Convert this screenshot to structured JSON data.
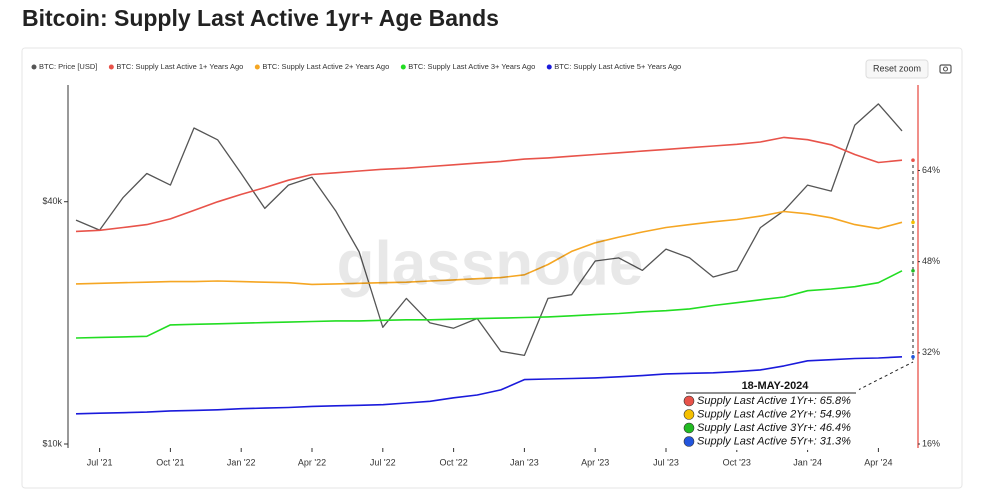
{
  "page_title": "Bitcoin: Supply Last Active 1yr+ Age Bands",
  "reset_button": "Reset zoom",
  "chart_data": {
    "type": "line",
    "watermark": "glassnode",
    "x": [
      "2021-06",
      "2021-07",
      "2021-08",
      "2021-09",
      "2021-10",
      "2021-11",
      "2021-12",
      "2022-01",
      "2022-02",
      "2022-03",
      "2022-04",
      "2022-05",
      "2022-06",
      "2022-07",
      "2022-08",
      "2022-09",
      "2022-10",
      "2022-11",
      "2022-12",
      "2023-01",
      "2023-02",
      "2023-03",
      "2023-04",
      "2023-05",
      "2023-06",
      "2023-07",
      "2023-08",
      "2023-09",
      "2023-10",
      "2023-11",
      "2023-12",
      "2024-01",
      "2024-02",
      "2024-03",
      "2024-04",
      "2024-05"
    ],
    "xlim": [
      "2021-06",
      "2024-05"
    ],
    "xticks": [
      {
        "value": "2021-07",
        "label": "Jul '21"
      },
      {
        "value": "2021-10",
        "label": "Oct '21"
      },
      {
        "value": "2022-01",
        "label": "Jan '22"
      },
      {
        "value": "2022-04",
        "label": "Apr '22"
      },
      {
        "value": "2022-07",
        "label": "Jul '22"
      },
      {
        "value": "2022-10",
        "label": "Oct '22"
      },
      {
        "value": "2023-01",
        "label": "Jan '23"
      },
      {
        "value": "2023-04",
        "label": "Apr '23"
      },
      {
        "value": "2023-07",
        "label": "Jul '23"
      },
      {
        "value": "2023-10",
        "label": "Oct '23"
      },
      {
        "value": "2024-01",
        "label": "Jan '24"
      },
      {
        "value": "2024-04",
        "label": "Apr '24"
      }
    ],
    "ylim": [
      10000,
      78000
    ],
    "yscale": "log",
    "yticks": [
      {
        "value": 10000,
        "label": "$10k"
      },
      {
        "value": 40000,
        "label": "$40k"
      }
    ],
    "y2lim": [
      16,
      79
    ],
    "y2ticks": [
      {
        "value": 16,
        "label": "16%"
      },
      {
        "value": 32,
        "label": "32%"
      },
      {
        "value": 48,
        "label": "48%"
      },
      {
        "value": 64,
        "label": "64%"
      }
    ],
    "grid": false,
    "legend": "top",
    "series": [
      {
        "name": "BTC: Price [USD]",
        "color": "#555555",
        "axis": "y",
        "values": [
          36000,
          34000,
          41000,
          47000,
          44000,
          61000,
          57000,
          47000,
          38500,
          44000,
          46000,
          38000,
          30000,
          19500,
          23000,
          20000,
          19400,
          20500,
          17000,
          16600,
          23000,
          23500,
          28500,
          29000,
          27000,
          30500,
          29000,
          26000,
          27000,
          34500,
          38000,
          44000,
          42500,
          62000,
          70000,
          60000
        ]
      },
      {
        "name": "BTC: Supply Last Active 1+ Years Ago",
        "color": "#e8534a",
        "axis": "y2",
        "values": [
          53.3,
          53.5,
          54,
          54.5,
          55.5,
          57,
          58.5,
          59.8,
          61,
          62.3,
          63.3,
          63.6,
          63.9,
          64.2,
          64.4,
          64.7,
          65,
          65.3,
          65.6,
          66,
          66.2,
          66.5,
          66.8,
          67.1,
          67.4,
          67.7,
          68,
          68.3,
          68.6,
          69,
          69.8,
          69.4,
          68.5,
          66.8,
          65.4,
          65.8
        ]
      },
      {
        "name": "BTC: Supply Last Active 2+ Years Ago",
        "color": "#f5a623",
        "axis": "y2",
        "values": [
          44.1,
          44.2,
          44.3,
          44.4,
          44.5,
          44.5,
          44.6,
          44.5,
          44.4,
          44.3,
          44,
          44.1,
          44.2,
          44.3,
          44.4,
          44.6,
          44.8,
          45,
          45.2,
          45.7,
          47.5,
          49.8,
          51.3,
          52.3,
          53.2,
          54,
          54.5,
          55,
          55.4,
          56,
          56.8,
          56.4,
          55.7,
          54.5,
          53.8,
          54.9
        ]
      },
      {
        "name": "BTC: Supply Last Active 3+ Years Ago",
        "color": "#22dd22",
        "axis": "y2",
        "values": [
          34.6,
          34.7,
          34.8,
          34.9,
          36.9,
          37,
          37.1,
          37.2,
          37.3,
          37.4,
          37.5,
          37.6,
          37.6,
          37.7,
          37.8,
          37.8,
          37.9,
          38,
          38.1,
          38.2,
          38.3,
          38.5,
          38.7,
          38.9,
          39.2,
          39.4,
          39.7,
          40.3,
          40.8,
          41.3,
          41.8,
          42.9,
          43.2,
          43.6,
          44.3,
          46.4
        ]
      },
      {
        "name": "BTC: Supply Last Active 5+ Years Ago",
        "color": "#1a1adb",
        "axis": "y2",
        "values": [
          21.3,
          21.4,
          21.5,
          21.6,
          21.8,
          21.9,
          22.0,
          22.2,
          22.3,
          22.4,
          22.6,
          22.7,
          22.8,
          22.9,
          23.2,
          23.5,
          24.1,
          24.6,
          25.5,
          27.3,
          27.4,
          27.5,
          27.6,
          27.8,
          28.0,
          28.3,
          28.4,
          28.5,
          28.7,
          29.0,
          29.7,
          30.6,
          30.8,
          31.0,
          31.1,
          31.3
        ]
      }
    ],
    "tooltip": {
      "date": "18-MAY-2024",
      "items": [
        {
          "label": "Supply Last Active 1Yr+:",
          "value": 65.8,
          "value_label": "65.8%",
          "color": "#e8534a"
        },
        {
          "label": "Supply Last Active 2Yr+:",
          "value": 54.9,
          "value_label": "54.9%",
          "color": "#f5c000"
        },
        {
          "label": "Supply Last Active 3Yr+:",
          "value": 46.4,
          "value_label": "46.4%",
          "color": "#22bb22"
        },
        {
          "label": "Supply Last Active 5Yr+:",
          "value": 31.3,
          "value_label": "31.3%",
          "color": "#2255dd"
        }
      ]
    }
  }
}
